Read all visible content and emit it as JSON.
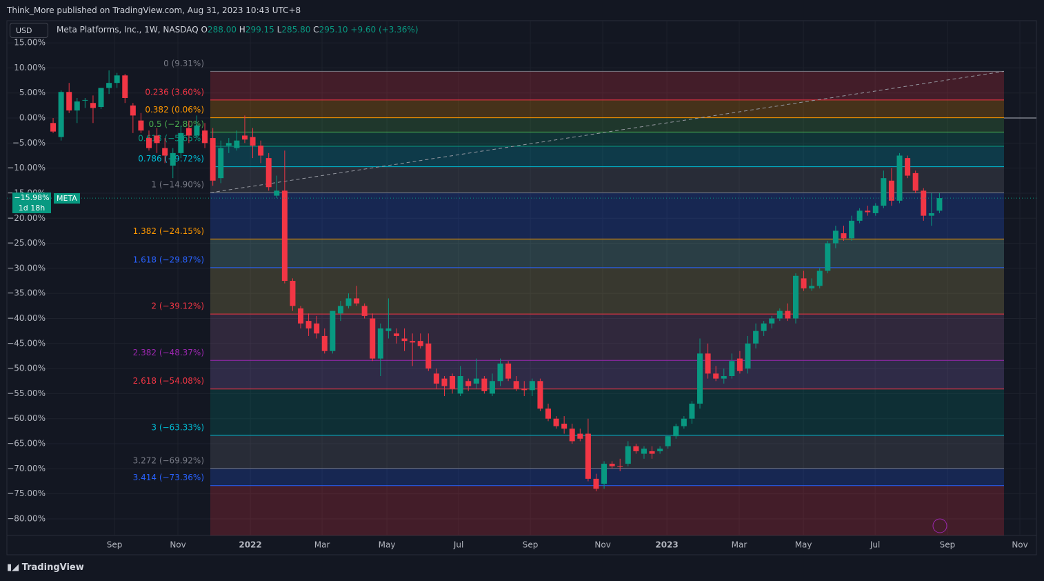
{
  "header": {
    "text": "Think_More published on TradingView.com, Aug 31, 2023 10:43 UTC+8"
  },
  "legend": {
    "currency": "USD",
    "symbol": "Meta Platforms, Inc., 1W, NASDAQ",
    "o_key": "O",
    "o": "288.00",
    "h_key": "H",
    "h": "299.15",
    "l_key": "L",
    "l": "285.80",
    "c_key": "C",
    "c": "295.10",
    "change": "+9.60 (+3.36%)"
  },
  "price_tag": {
    "value_label": "−15.98%",
    "countdown": "1d 18h",
    "ticker": "META"
  },
  "footer": {
    "brand": "TradingView"
  },
  "chart_data": {
    "type": "candlestick",
    "up_color": "#089981",
    "down_color": "#f23645",
    "grid": true,
    "hline": 0,
    "ylim": [
      -83.31,
      19.42
    ],
    "yticks": [
      {
        "value": 15,
        "label": "15.00%"
      },
      {
        "value": 10,
        "label": "10.00%"
      },
      {
        "value": 5,
        "label": "5.00%"
      },
      {
        "value": 0,
        "label": "0.00%"
      },
      {
        "value": -5,
        "label": "−5.00%"
      },
      {
        "value": -10,
        "label": "−10.00%"
      },
      {
        "value": -15,
        "label": "−15.00%"
      },
      {
        "value": -20,
        "label": "−20.00%"
      },
      {
        "value": -25,
        "label": "−25.00%"
      },
      {
        "value": -30,
        "label": "−30.00%"
      },
      {
        "value": -35,
        "label": "−35.00%"
      },
      {
        "value": -40,
        "label": "−40.00%"
      },
      {
        "value": -45,
        "label": "−45.00%"
      },
      {
        "value": -50,
        "label": "−50.00%"
      },
      {
        "value": -55,
        "label": "−55.00%"
      },
      {
        "value": -60,
        "label": "−60.00%"
      },
      {
        "value": -65,
        "label": "−65.00%"
      },
      {
        "value": -70,
        "label": "−70.00%"
      },
      {
        "value": -75,
        "label": "−75.00%"
      },
      {
        "value": -80,
        "label": "−80.00%"
      }
    ],
    "xlim": [
      -5.79,
      123.14
    ],
    "xticks": [
      {
        "value": 7.69,
        "label": "Sep"
      },
      {
        "value": 15.63,
        "label": "Nov"
      },
      {
        "value": 24.7,
        "label": "2022"
      },
      {
        "value": 33.68,
        "label": "Mar"
      },
      {
        "value": 41.8,
        "label": "May"
      },
      {
        "value": 50.78,
        "label": "Jul"
      },
      {
        "value": 59.76,
        "label": "Sep"
      },
      {
        "value": 68.83,
        "label": "Nov"
      },
      {
        "value": 76.86,
        "label": "2023"
      },
      {
        "value": 85.92,
        "label": "Mar"
      },
      {
        "value": 93.96,
        "label": "May"
      },
      {
        "value": 102.94,
        "label": "Jul"
      },
      {
        "value": 112,
        "label": "Sep"
      },
      {
        "value": 121.07,
        "label": "Nov"
      }
    ],
    "fib_levels": [
      {
        "label": "0 (9.31%)",
        "value": 9.31,
        "color": "#787b86",
        "fill": "#f23645"
      },
      {
        "label": "0.236 (3.60%)",
        "value": 3.6,
        "color": "#f23645",
        "fill": "#ff9800"
      },
      {
        "label": "0.382 (0.06%)",
        "value": 0.06,
        "color": "#ff9800",
        "fill": "#4caf50"
      },
      {
        "label": "0.5 (−2.80%)",
        "value": -2.8,
        "color": "#4caf50",
        "fill": "#089981"
      },
      {
        "label": "0.618 (−5.65%)",
        "value": -5.65,
        "color": "#089981",
        "fill": "#00bcd4"
      },
      {
        "label": "0.786 (−9.72%)",
        "value": -9.72,
        "color": "#00bcd4",
        "fill": "#787b86"
      },
      {
        "label": "1 (−14.90%)",
        "value": -14.9,
        "color": "#787b86",
        "fill": "#2962ff"
      },
      {
        "label": "1.382 (−24.15%)",
        "value": -24.15,
        "color": "#ff9800",
        "fill": "#80cbc4"
      },
      {
        "label": "1.618 (−29.87%)",
        "value": -29.87,
        "color": "#2962ff",
        "fill": "#c0b060"
      },
      {
        "label": "2 (−39.12%)",
        "value": -39.12,
        "color": "#f23645",
        "fill": "#9c6b9c"
      },
      {
        "label": "2.382 (−48.37%)",
        "value": -48.37,
        "color": "#9c27b0",
        "fill": "#9575cd"
      },
      {
        "label": "2.618 (−54.08%)",
        "value": -54.08,
        "color": "#f23645",
        "fill": "#00897b"
      },
      {
        "label": "3 (−63.33%)",
        "value": -63.33,
        "color": "#00bcd4",
        "fill": "#787b86"
      },
      {
        "label": "3.272 (−69.92%)",
        "value": -69.92,
        "color": "#787b86",
        "fill": "#2962ff"
      },
      {
        "label": "3.414 (−73.36%)",
        "value": -73.36,
        "color": "#2962ff",
        "fill": "#f23645"
      }
    ],
    "candles": [
      [
        -1,
        0,
        -3,
        -2.7
      ],
      [
        -3.8,
        5.5,
        -4.5,
        5.2
      ],
      [
        5.2,
        7,
        1,
        1.5
      ],
      [
        1.5,
        4,
        -1,
        3.3
      ],
      [
        3.5,
        4,
        2,
        3.6
      ],
      [
        3,
        4.5,
        -1,
        2
      ],
      [
        2.2,
        6,
        1.8,
        6
      ],
      [
        6,
        9.5,
        4.8,
        7
      ],
      [
        7,
        9,
        6,
        8.5
      ],
      [
        8.5,
        8.8,
        3,
        4
      ],
      [
        2.5,
        3,
        -3,
        0.5
      ],
      [
        -0.5,
        1,
        -3,
        -2.5
      ],
      [
        -4,
        -2.5,
        -6.5,
        -6
      ],
      [
        -3.5,
        -2,
        -7,
        -5
      ],
      [
        -6,
        -4,
        -9,
        -7.5
      ],
      [
        -9.5,
        -6,
        -12,
        -7
      ],
      [
        -7,
        -1.5,
        -8,
        -3
      ],
      [
        -2,
        -0.5,
        -5,
        -3.5
      ],
      [
        -3.5,
        0.5,
        -4,
        -1.5
      ],
      [
        -2.5,
        -1,
        -6,
        -5
      ],
      [
        -4,
        -2,
        -13.5,
        -12.5
      ],
      [
        -12,
        -4.5,
        -13,
        -6
      ],
      [
        -5.5,
        -4,
        -7,
        -5
      ],
      [
        -6,
        -2.5,
        -6.5,
        -4.5
      ],
      [
        -3.5,
        0.5,
        -5,
        -4.3
      ],
      [
        -3.8,
        -2,
        -8,
        -5.5
      ],
      [
        -5.5,
        -4.5,
        -9,
        -7.5
      ],
      [
        -8,
        -7,
        -14.5,
        -13.8
      ],
      [
        -15.5,
        -11.5,
        -16,
        -14.5
      ],
      [
        -14.5,
        -6.5,
        -33,
        -32.5
      ],
      [
        -32.5,
        -32,
        -38.5,
        -37.5
      ],
      [
        -38,
        -37.5,
        -42,
        -41
      ],
      [
        -40.5,
        -39,
        -43.5,
        -42
      ],
      [
        -41,
        -39.5,
        -44,
        -43
      ],
      [
        -43.5,
        -42,
        -47,
        -46.5
      ],
      [
        -46.5,
        -38.5,
        -47,
        -38.5
      ],
      [
        -39,
        -36.5,
        -40.5,
        -37.5
      ],
      [
        -37.5,
        -35,
        -38,
        -36
      ],
      [
        -36,
        -33.5,
        -37.5,
        -37
      ],
      [
        -37.5,
        -37,
        -40,
        -39.5
      ],
      [
        -40,
        -39,
        -48.5,
        -48
      ],
      [
        -48,
        -41,
        -51.5,
        -42
      ],
      [
        -42.5,
        -36,
        -44,
        -42
      ],
      [
        -43,
        -42,
        -45,
        -43.5
      ],
      [
        -44,
        -42,
        -46.5,
        -44.5
      ],
      [
        -44.5,
        -43,
        -49.5,
        -44.8
      ],
      [
        -44.5,
        -43,
        -46,
        -45.5
      ],
      [
        -45,
        -43,
        -50.5,
        -50
      ],
      [
        -51,
        -50,
        -54,
        -53
      ],
      [
        -52,
        -51.5,
        -55.5,
        -53.5
      ],
      [
        -51.5,
        -51,
        -55,
        -54
      ],
      [
        -55,
        -49.5,
        -55.5,
        -51.5
      ],
      [
        -52.5,
        -52,
        -54.5,
        -53.5
      ],
      [
        -53,
        -48,
        -54,
        -52
      ],
      [
        -52,
        -51.5,
        -55,
        -54.5
      ],
      [
        -55,
        -51,
        -55.5,
        -52.5
      ],
      [
        -52.5,
        -48,
        -53.5,
        -49
      ],
      [
        -49,
        -48.5,
        -52.5,
        -52
      ],
      [
        -52.5,
        -51.5,
        -54.5,
        -54
      ],
      [
        -54,
        -52.5,
        -55.5,
        -54.3
      ],
      [
        -54.3,
        -52,
        -55.5,
        -52.5
      ],
      [
        -52.5,
        -52,
        -58.5,
        -58
      ],
      [
        -58,
        -57,
        -60.5,
        -60
      ],
      [
        -60,
        -59.5,
        -62,
        -61.5
      ],
      [
        -61,
        -59.5,
        -63,
        -62
      ],
      [
        -62,
        -61,
        -65,
        -64.5
      ],
      [
        -63,
        -62,
        -64.5,
        -64
      ],
      [
        -63,
        -60,
        -72.5,
        -72
      ],
      [
        -72,
        -71,
        -74.5,
        -74
      ],
      [
        -73,
        -68.5,
        -74,
        -69
      ],
      [
        -69,
        -68.5,
        -70,
        -69.5
      ],
      [
        -69.5,
        -68,
        -70.5,
        -69.6
      ],
      [
        -69,
        -64.5,
        -69.5,
        -65.5
      ],
      [
        -65.5,
        -65,
        -67,
        -66.5
      ],
      [
        -67,
        -65.5,
        -68,
        -66
      ],
      [
        -66.5,
        -65.5,
        -68,
        -67
      ],
      [
        -66.5,
        -65.5,
        -67,
        -66
      ],
      [
        -65.5,
        -63.5,
        -66,
        -63.5
      ],
      [
        -63.5,
        -61,
        -64,
        -61.5
      ],
      [
        -61.5,
        -59.5,
        -62,
        -60
      ],
      [
        -60,
        -56.5,
        -61,
        -57
      ],
      [
        -57,
        -44,
        -58,
        -47
      ],
      [
        -47,
        -45,
        -52,
        -51
      ],
      [
        -51,
        -49.5,
        -52.5,
        -52
      ],
      [
        -52,
        -50,
        -53,
        -51.5
      ],
      [
        -51.5,
        -47,
        -52,
        -48.5
      ],
      [
        -48,
        -46.5,
        -51,
        -50.5
      ],
      [
        -50,
        -43.5,
        -51,
        -45
      ],
      [
        -45,
        -41,
        -46,
        -42.5
      ],
      [
        -42.5,
        -40.5,
        -43.5,
        -41
      ],
      [
        -41,
        -39.5,
        -42,
        -40
      ],
      [
        -40,
        -38,
        -40.5,
        -38.5
      ],
      [
        -38.5,
        -37,
        -40.5,
        -40
      ],
      [
        -40,
        -31,
        -41,
        -31.5
      ],
      [
        -32,
        -30.5,
        -34.5,
        -34
      ],
      [
        -34,
        -32,
        -34.5,
        -33.5
      ],
      [
        -33.5,
        -30,
        -34,
        -30.5
      ],
      [
        -30.5,
        -24.5,
        -31,
        -25
      ],
      [
        -25,
        -21.5,
        -26,
        -22.5
      ],
      [
        -23,
        -21.5,
        -24.5,
        -24
      ],
      [
        -24,
        -19.5,
        -24.5,
        -20.5
      ],
      [
        -20.5,
        -18,
        -21,
        -18.5
      ],
      [
        -18.5,
        -17.5,
        -19.5,
        -18.8
      ],
      [
        -19,
        -17,
        -19.5,
        -17.5
      ],
      [
        -17.5,
        -10.5,
        -18,
        -12
      ],
      [
        -12.5,
        -10,
        -17.5,
        -16.5
      ],
      [
        -16.5,
        -7,
        -17,
        -7.5
      ],
      [
        -8,
        -7.5,
        -12,
        -11.5
      ],
      [
        -11,
        -10.5,
        -15,
        -14.5
      ],
      [
        -14.5,
        -14,
        -20.5,
        -19.5
      ],
      [
        -19.5,
        -15,
        -21.5,
        -19
      ],
      [
        -18.5,
        -15,
        -19,
        -15.98
      ]
    ]
  }
}
